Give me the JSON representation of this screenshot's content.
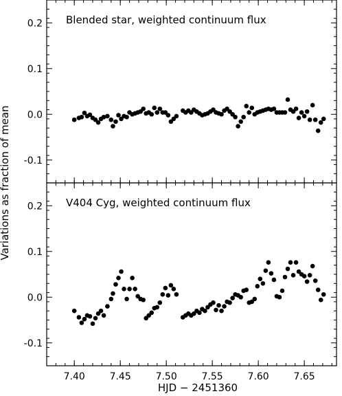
{
  "chart_data": [
    {
      "type": "scatter",
      "title": "Blended star, weighted continuum flux",
      "xlabel": "",
      "ylabel": "",
      "xlim": [
        7.37,
        7.685
      ],
      "ylim": [
        -0.15,
        0.25
      ],
      "xticks": [
        7.4,
        7.45,
        7.5,
        7.55,
        7.6,
        7.65
      ],
      "xtick_labels": [],
      "yticks": [
        -0.1,
        0.0,
        0.1,
        0.2
      ],
      "ytick_labels": [
        "-0.1",
        "0.0",
        "0.1",
        "0.2"
      ],
      "grid": false,
      "series": [
        {
          "x": [
            7.4,
            7.405,
            7.408,
            7.411,
            7.414,
            7.417,
            7.42,
            7.423,
            7.426,
            7.429,
            7.432,
            7.436,
            7.44,
            7.442,
            7.445,
            7.448,
            7.451,
            7.454,
            7.457,
            7.46,
            7.463,
            7.466,
            7.469,
            7.472,
            7.475,
            7.478,
            7.481,
            7.484,
            7.487,
            7.49,
            7.493,
            7.496,
            7.499,
            7.502,
            7.505,
            7.508,
            7.511,
            7.518,
            7.521,
            7.524,
            7.527,
            7.53,
            7.533,
            7.536,
            7.539,
            7.542,
            7.545,
            7.548,
            7.551,
            7.554,
            7.557,
            7.56,
            7.563,
            7.566,
            7.569,
            7.572,
            7.575,
            7.578,
            7.581,
            7.584,
            7.587,
            7.59,
            7.593,
            7.596,
            7.599,
            7.602,
            7.605,
            7.608,
            7.611,
            7.614,
            7.617,
            7.62,
            7.623,
            7.626,
            7.629,
            7.632,
            7.635,
            7.638,
            7.641,
            7.644,
            7.647,
            7.65,
            7.653,
            7.656,
            7.659,
            7.662,
            7.665,
            7.668,
            7.671
          ],
          "y": [
            -0.012,
            -0.008,
            -0.006,
            0.003,
            -0.004,
            -0.001,
            -0.008,
            -0.012,
            -0.018,
            -0.01,
            -0.006,
            -0.004,
            -0.012,
            -0.026,
            -0.016,
            -0.002,
            -0.01,
            -0.004,
            -0.006,
            0.004,
            0.0,
            0.002,
            0.004,
            0.006,
            0.012,
            0.002,
            0.004,
            0.0,
            0.014,
            0.004,
            0.012,
            0.004,
            0.004,
            -0.002,
            -0.016,
            -0.01,
            -0.004,
            0.008,
            0.004,
            0.008,
            0.004,
            0.01,
            0.006,
            0.002,
            -0.002,
            0.0,
            0.002,
            0.006,
            0.01,
            0.004,
            0.002,
            0.0,
            0.008,
            0.012,
            0.006,
            0.0,
            -0.006,
            -0.026,
            -0.016,
            -0.006,
            0.018,
            0.004,
            0.014,
            0.0,
            0.004,
            0.006,
            0.008,
            0.01,
            0.012,
            0.01,
            0.012,
            0.004,
            0.004,
            0.004,
            0.004,
            0.032,
            0.01,
            0.006,
            0.012,
            -0.008,
            0.004,
            -0.004,
            0.006,
            -0.012,
            0.02,
            -0.012,
            -0.036,
            -0.018,
            -0.01
          ]
        }
      ]
    },
    {
      "type": "scatter",
      "title": "V404 Cyg, weighted continuum flux",
      "xlabel": "HJD − 2451360",
      "ylabel": "",
      "xlim": [
        7.37,
        7.685
      ],
      "ylim": [
        -0.15,
        0.25
      ],
      "xticks": [
        7.4,
        7.45,
        7.5,
        7.55,
        7.6,
        7.65
      ],
      "xtick_labels": [
        "7.40",
        "7.45",
        "7.50",
        "7.55",
        "7.60",
        "7.65"
      ],
      "yticks": [
        -0.1,
        0.0,
        0.1,
        0.2
      ],
      "ytick_labels": [
        "-0.1",
        "0.0",
        "0.1",
        "0.2"
      ],
      "grid": false,
      "series": [
        {
          "x": [
            7.4,
            7.405,
            7.408,
            7.411,
            7.414,
            7.417,
            7.42,
            7.423,
            7.426,
            7.429,
            7.432,
            7.436,
            7.44,
            7.442,
            7.445,
            7.448,
            7.451,
            7.454,
            7.457,
            7.46,
            7.463,
            7.466,
            7.469,
            7.472,
            7.475,
            7.478,
            7.481,
            7.484,
            7.487,
            7.49,
            7.493,
            7.496,
            7.499,
            7.502,
            7.505,
            7.508,
            7.511,
            7.518,
            7.521,
            7.524,
            7.527,
            7.53,
            7.533,
            7.536,
            7.539,
            7.542,
            7.545,
            7.548,
            7.551,
            7.554,
            7.557,
            7.56,
            7.563,
            7.566,
            7.569,
            7.572,
            7.575,
            7.578,
            7.581,
            7.584,
            7.587,
            7.59,
            7.593,
            7.596,
            7.599,
            7.602,
            7.605,
            7.608,
            7.611,
            7.614,
            7.617,
            7.62,
            7.623,
            7.626,
            7.629,
            7.632,
            7.635,
            7.638,
            7.641,
            7.644,
            7.647,
            7.65,
            7.653,
            7.656,
            7.659,
            7.662,
            7.665,
            7.668,
            7.671
          ],
          "y": [
            -0.03,
            -0.044,
            -0.056,
            -0.048,
            -0.04,
            -0.042,
            -0.058,
            -0.046,
            -0.036,
            -0.03,
            -0.04,
            -0.02,
            -0.004,
            0.008,
            0.028,
            0.042,
            0.056,
            0.018,
            -0.004,
            0.018,
            0.042,
            0.018,
            0.002,
            -0.004,
            -0.006,
            -0.046,
            -0.04,
            -0.034,
            -0.024,
            -0.022,
            -0.012,
            0.006,
            0.02,
            0.004,
            0.026,
            0.018,
            0.006,
            -0.044,
            -0.04,
            -0.036,
            -0.04,
            -0.036,
            -0.03,
            -0.034,
            -0.026,
            -0.03,
            -0.022,
            -0.016,
            -0.012,
            -0.028,
            -0.018,
            -0.03,
            -0.02,
            -0.01,
            -0.012,
            -0.002,
            0.006,
            0.004,
            0.0,
            0.014,
            0.016,
            -0.012,
            -0.01,
            -0.004,
            0.024,
            0.04,
            0.03,
            0.058,
            0.076,
            0.052,
            0.038,
            0.002,
            0.0,
            0.014,
            0.044,
            0.062,
            0.076,
            0.048,
            0.076,
            0.056,
            0.05,
            0.046,
            0.034,
            0.048,
            0.068,
            0.036,
            0.016,
            -0.006,
            0.006
          ]
        }
      ]
    }
  ],
  "figure": {
    "ylabel": "Variations as fraction of mean",
    "xlabel": "HJD − 2451360"
  }
}
